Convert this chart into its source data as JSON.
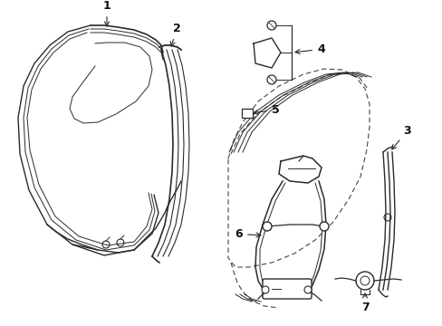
{
  "bg_color": "#ffffff",
  "line_color": "#2a2a2a",
  "dashed_color": "#444444",
  "label_color": "#111111",
  "figsize": [
    4.89,
    3.6
  ],
  "dpi": 100
}
